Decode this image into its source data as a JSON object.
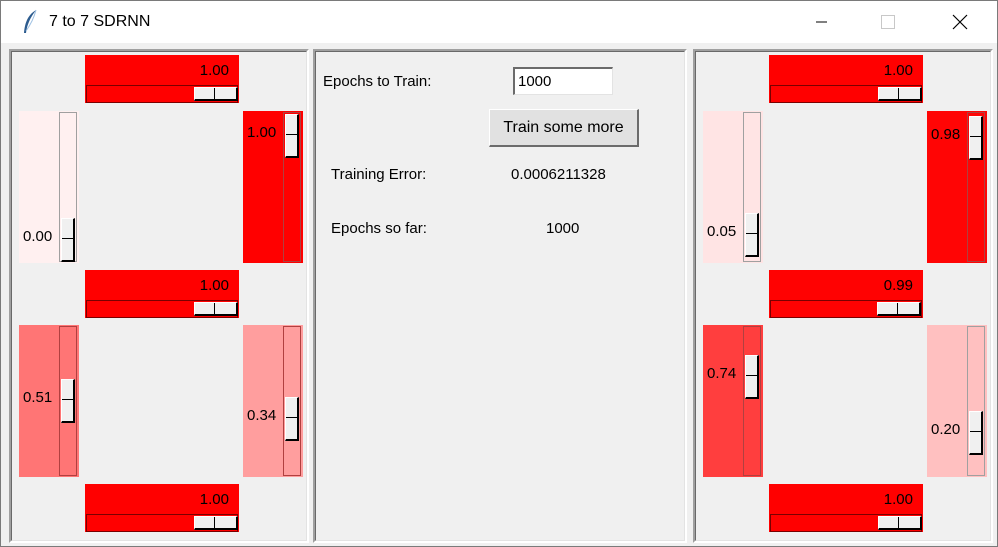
{
  "window": {
    "title": "7 to 7 SDRNN",
    "icon": "feather-icon"
  },
  "controls": {
    "epochs_label": "Epochs to Train:",
    "epochs_value": "1000",
    "train_button": "Train some more",
    "error_label": "Training Error:",
    "error_value": "0.0006211328",
    "epochs_so_far_label": "Epochs so far:",
    "epochs_so_far_value": "1000"
  },
  "input_segments": {
    "top": {
      "label": "1.00",
      "value": 1.0
    },
    "top_left": {
      "label": "0.00",
      "value": 0.0
    },
    "top_right": {
      "label": "1.00",
      "value": 1.0
    },
    "middle": {
      "label": "1.00",
      "value": 1.0
    },
    "bottom_left": {
      "label": "0.51",
      "value": 0.51
    },
    "bottom_right": {
      "label": "0.34",
      "value": 0.34
    },
    "bottom": {
      "label": "1.00",
      "value": 1.0
    }
  },
  "output_segments": {
    "top": {
      "label": "1.00",
      "value": 1.0
    },
    "top_left": {
      "label": "0.05",
      "value": 0.05
    },
    "top_right": {
      "label": "0.98",
      "value": 0.98
    },
    "middle": {
      "label": "0.99",
      "value": 0.99
    },
    "bottom_left": {
      "label": "0.74",
      "value": 0.74
    },
    "bottom_right": {
      "label": "0.20",
      "value": 0.2
    },
    "bottom": {
      "label": "1.00",
      "value": 1.0
    }
  }
}
